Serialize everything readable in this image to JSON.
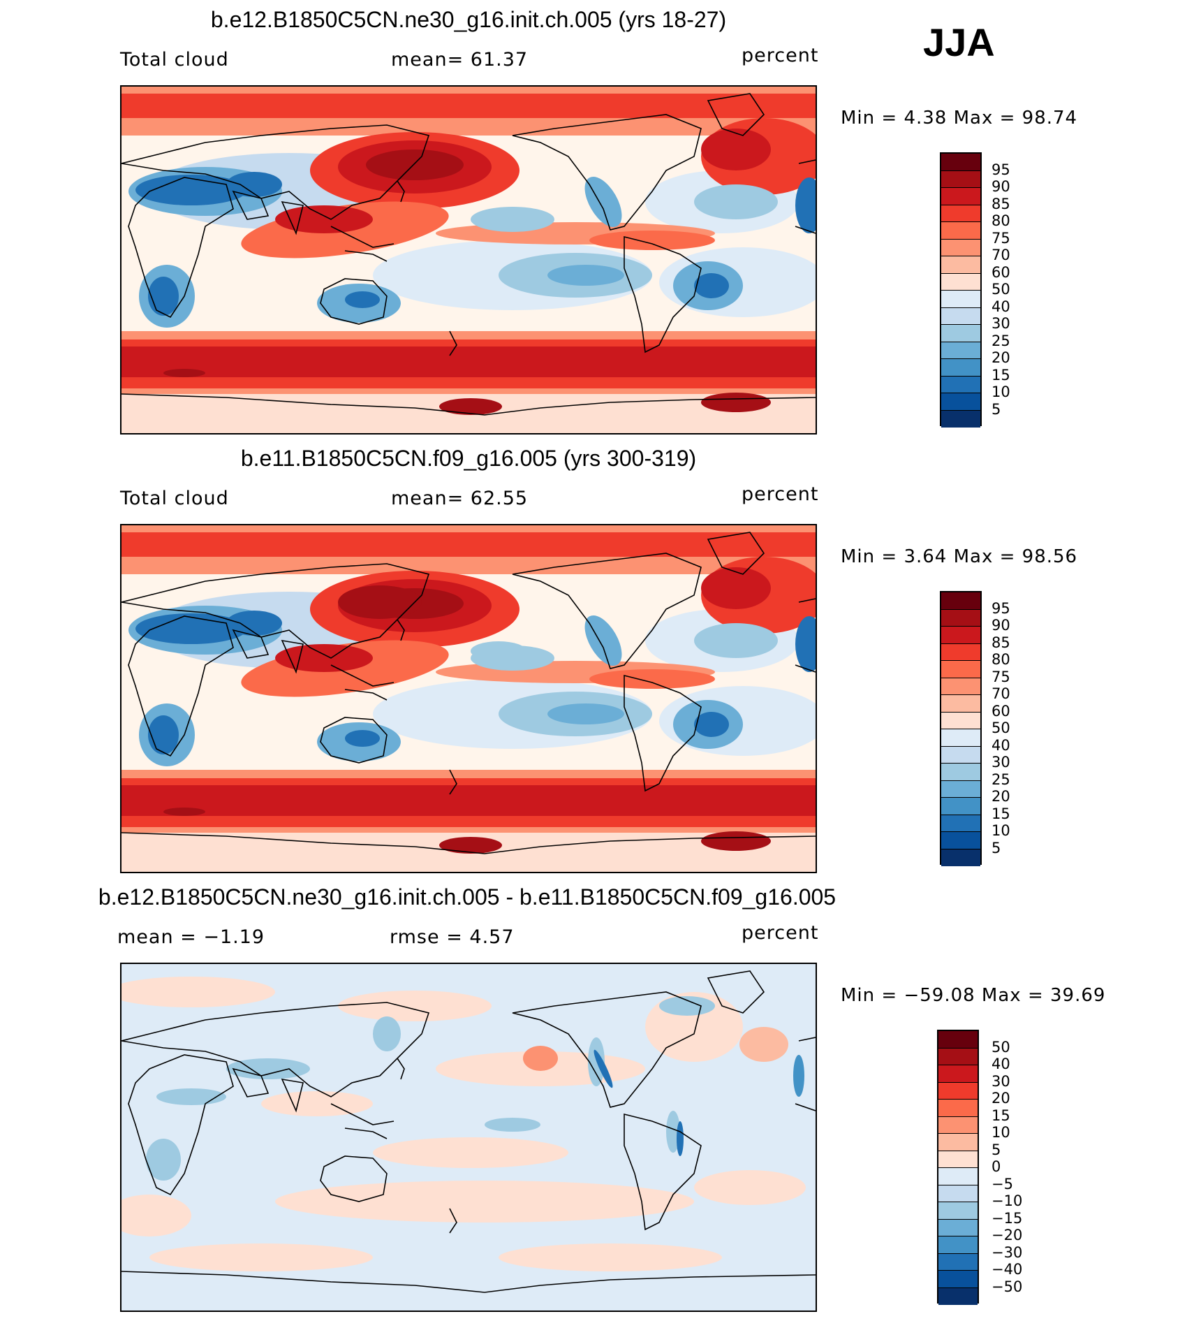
{
  "season": "JJA",
  "panels": [
    {
      "title": "b.e12.B1850C5CN.ne30_g16.init.ch.005 (yrs 18-27)",
      "left_label": "Total cloud",
      "center_label": "mean=   61.37",
      "right_label": "percent",
      "min_max": "Min =    4.38 Max =   98.74",
      "colorbar_labels": [
        "95",
        "90",
        "85",
        "80",
        "75",
        "70",
        "60",
        "50",
        "40",
        "30",
        "25",
        "20",
        "15",
        "10",
        "5"
      ]
    },
    {
      "title": "b.e11.B1850C5CN.f09_g16.005 (yrs 300-319)",
      "left_label": "Total cloud",
      "center_label": "mean=   62.55",
      "right_label": "percent",
      "min_max": "Min =    3.64 Max =   98.56",
      "colorbar_labels": [
        "95",
        "90",
        "85",
        "80",
        "75",
        "70",
        "60",
        "50",
        "40",
        "30",
        "25",
        "20",
        "15",
        "10",
        "5"
      ]
    },
    {
      "title": "b.e12.B1850C5CN.ne30_g16.init.ch.005 - b.e11.B1850C5CN.f09_g16.005",
      "left_label": "mean =   −1.19",
      "center_label": "rmse =    4.57",
      "right_label": "percent",
      "min_max": "Min = −59.08 Max =   39.69",
      "colorbar_labels": [
        "50",
        "40",
        "30",
        "20",
        "15",
        "10",
        "5",
        "0",
        "−5",
        "−10",
        "−15",
        "−20",
        "−30",
        "−40",
        "−50"
      ]
    }
  ],
  "colorbar_colors": [
    "#67000d",
    "#a50f15",
    "#cb181d",
    "#ef3b2c",
    "#fb6a4a",
    "#fc9272",
    "#fcbba1",
    "#fee0d2",
    "#fff5eb",
    "#deebf7",
    "#c6dbef",
    "#9ecae1",
    "#6baed6",
    "#4292c6",
    "#2171b5",
    "#08519c",
    "#08306b"
  ]
}
